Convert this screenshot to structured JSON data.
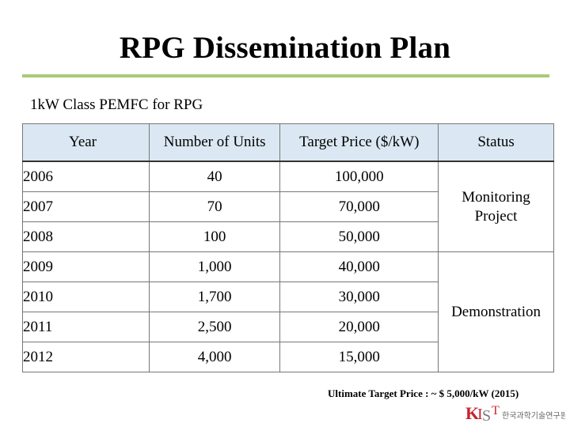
{
  "slide": {
    "title": "RPG Dissemination Plan",
    "subtitle": "1kW Class PEMFC for RPG",
    "footnote": "Ultimate Target Price : ~ $ 5,000/kW (2015)",
    "accent_color": "#a9cc74",
    "header_fill": "#dbe8f3"
  },
  "table": {
    "headers": [
      "Year",
      "Number of Units",
      "Target Price ($/kW)",
      "Status"
    ],
    "rows": [
      {
        "year": "2006",
        "units": "40",
        "price": "100,000"
      },
      {
        "year": "2007",
        "units": "70",
        "price": "70,000"
      },
      {
        "year": "2008",
        "units": "100",
        "price": "50,000"
      },
      {
        "year": "2009",
        "units": "1,000",
        "price": "40,000"
      },
      {
        "year": "2010",
        "units": "1,700",
        "price": "30,000"
      },
      {
        "year": "2011",
        "units": "2,500",
        "price": "20,000"
      },
      {
        "year": "2012",
        "units": "4,000",
        "price": "15,000"
      }
    ],
    "status_groups": [
      "Monitoring Project",
      "Demonstration"
    ]
  },
  "logo": {
    "mark": "KIST",
    "text": "한국과학기술연구원"
  }
}
